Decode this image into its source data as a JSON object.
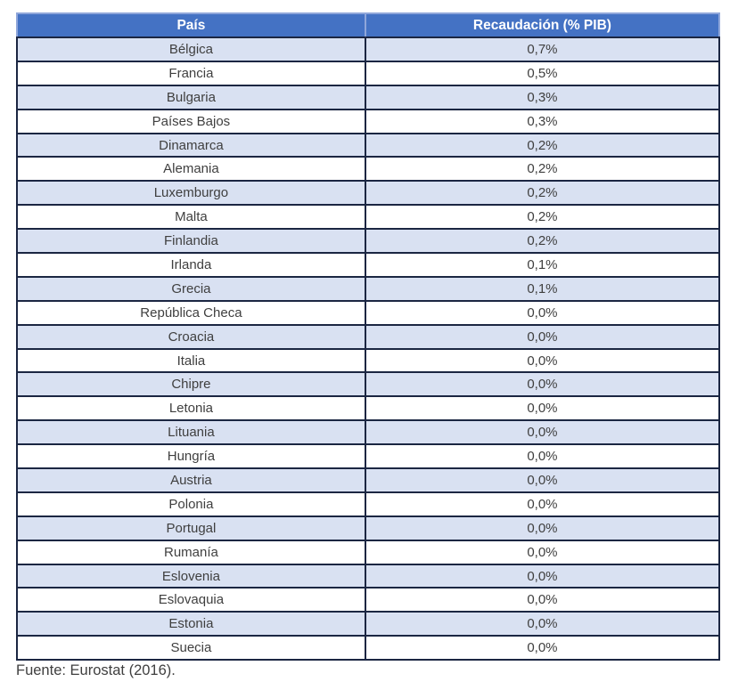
{
  "table": {
    "columns": [
      {
        "key": "country",
        "label": "País"
      },
      {
        "key": "value",
        "label": "Recaudación (% PIB)"
      }
    ],
    "rows": [
      {
        "country": "Bélgica",
        "value": "0,7%"
      },
      {
        "country": "Francia",
        "value": "0,5%"
      },
      {
        "country": "Bulgaria",
        "value": "0,3%"
      },
      {
        "country": "Países Bajos",
        "value": "0,3%"
      },
      {
        "country": "Dinamarca",
        "value": "0,2%"
      },
      {
        "country": "Alemania",
        "value": "0,2%"
      },
      {
        "country": "Luxemburgo",
        "value": "0,2%"
      },
      {
        "country": "Malta",
        "value": "0,2%"
      },
      {
        "country": "Finlandia",
        "value": "0,2%"
      },
      {
        "country": "Irlanda",
        "value": "0,1%"
      },
      {
        "country": "Grecia",
        "value": "0,1%"
      },
      {
        "country": "República Checa",
        "value": "0,0%"
      },
      {
        "country": "Croacia",
        "value": "0,0%"
      },
      {
        "country": "Italia",
        "value": "0,0%"
      },
      {
        "country": "Chipre",
        "value": "0,0%"
      },
      {
        "country": "Letonia",
        "value": "0,0%"
      },
      {
        "country": "Lituania",
        "value": "0,0%"
      },
      {
        "country": "Hungría",
        "value": "0,0%"
      },
      {
        "country": "Austria",
        "value": "0,0%"
      },
      {
        "country": "Polonia",
        "value": "0,0%"
      },
      {
        "country": "Portugal",
        "value": "0,0%"
      },
      {
        "country": "Rumanía",
        "value": "0,0%"
      },
      {
        "country": "Eslovenia",
        "value": "0,0%"
      },
      {
        "country": "Eslovaquia",
        "value": "0,0%"
      },
      {
        "country": "Estonia",
        "value": "0,0%"
      },
      {
        "country": "Suecia",
        "value": "0,0%"
      }
    ]
  },
  "footer": {
    "source": "Fuente: Eurostat (2016)."
  },
  "colors": {
    "header_bg": "#4472C4",
    "header_text": "#FFFFFF",
    "header_outer_border": "#8FA6DA",
    "band_row_bg": "#D9E1F2",
    "plain_row_bg": "#FFFFFF",
    "border": "#1B2642",
    "body_text": "#3F3F3F"
  },
  "chart_data": {
    "type": "table",
    "title": "",
    "columns": [
      "País",
      "Recaudación (% PIB)"
    ],
    "rows": [
      [
        "Bélgica",
        "0,7%"
      ],
      [
        "Francia",
        "0,5%"
      ],
      [
        "Bulgaria",
        "0,3%"
      ],
      [
        "Países Bajos",
        "0,3%"
      ],
      [
        "Dinamarca",
        "0,2%"
      ],
      [
        "Alemania",
        "0,2%"
      ],
      [
        "Luxemburgo",
        "0,2%"
      ],
      [
        "Malta",
        "0,2%"
      ],
      [
        "Finlandia",
        "0,2%"
      ],
      [
        "Irlanda",
        "0,1%"
      ],
      [
        "Grecia",
        "0,1%"
      ],
      [
        "República Checa",
        "0,0%"
      ],
      [
        "Croacia",
        "0,0%"
      ],
      [
        "Italia",
        "0,0%"
      ],
      [
        "Chipre",
        "0,0%"
      ],
      [
        "Letonia",
        "0,0%"
      ],
      [
        "Lituania",
        "0,0%"
      ],
      [
        "Hungría",
        "0,0%"
      ],
      [
        "Austria",
        "0,0%"
      ],
      [
        "Polonia",
        "0,0%"
      ],
      [
        "Portugal",
        "0,0%"
      ],
      [
        "Rumanía",
        "0,0%"
      ],
      [
        "Eslovenia",
        "0,0%"
      ],
      [
        "Eslovaquia",
        "0,0%"
      ],
      [
        "Estonia",
        "0,0%"
      ],
      [
        "Suecia",
        "0,0%"
      ]
    ],
    "values_numeric_pct_pib": [
      0.7,
      0.5,
      0.3,
      0.3,
      0.2,
      0.2,
      0.2,
      0.2,
      0.2,
      0.1,
      0.1,
      0.0,
      0.0,
      0.0,
      0.0,
      0.0,
      0.0,
      0.0,
      0.0,
      0.0,
      0.0,
      0.0,
      0.0,
      0.0,
      0.0,
      0.0
    ],
    "source": "Fuente: Eurostat (2016)."
  }
}
